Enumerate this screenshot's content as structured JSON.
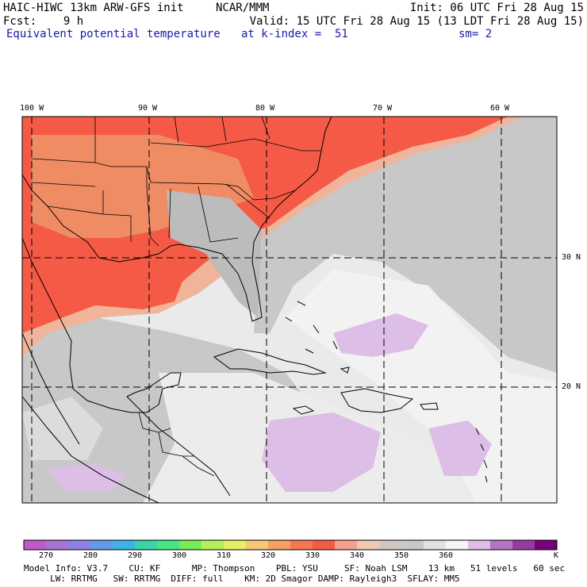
{
  "header": {
    "model_title": "HAIC-HIWC 13km ARW-GFS init",
    "institution": "NCAR/MMM",
    "init": "Init: 06 UTC Fri 28 Aug 15",
    "forecast": "Fcst:    9 h",
    "valid": "Valid: 15 UTC Fri 28 Aug 15 (13 LDT Fri 28 Aug 15)",
    "field_name": "Equivalent potential temperature",
    "level": "at k-index =  51",
    "smoothing": "sm= 2"
  },
  "map": {
    "longitude_labels": [
      "100 W",
      "90 W",
      "80 W",
      "70 W",
      "60 W"
    ],
    "latitude_labels": [
      "30 N",
      "20 N"
    ]
  },
  "colorbar": {
    "ticks": [
      "270",
      "280",
      "290",
      "300",
      "310",
      "320",
      "330",
      "340",
      "350",
      "360"
    ],
    "unit": "K",
    "colors": [
      "#c05ac8",
      "#a873d2",
      "#8c82e6",
      "#649be6",
      "#3cb4e6",
      "#3cd2aa",
      "#46e682",
      "#78eb5a",
      "#b4f05a",
      "#e6ee64",
      "#f5c878",
      "#f5a064",
      "#f57850",
      "#f55a46",
      "#f5a08c",
      "#f0c8b4",
      "#d2c8c3",
      "#c8c8c8",
      "#e1e1e1",
      "#f5f5f5",
      "#dcbee6",
      "#b473c3",
      "#963ca0",
      "#780078"
    ]
  },
  "footer": {
    "line1": "Model Info: V3.7    CU: KF      MP: Thompson    PBL: YSU     SF: Noah LSM    13 km   51 levels   60 sec",
    "line2": "     LW: RRTMG   SW: RRTMG  DIFF: full    KM: 2D Smagor DAMP: Rayleigh3  SFLAY: MM5"
  }
}
